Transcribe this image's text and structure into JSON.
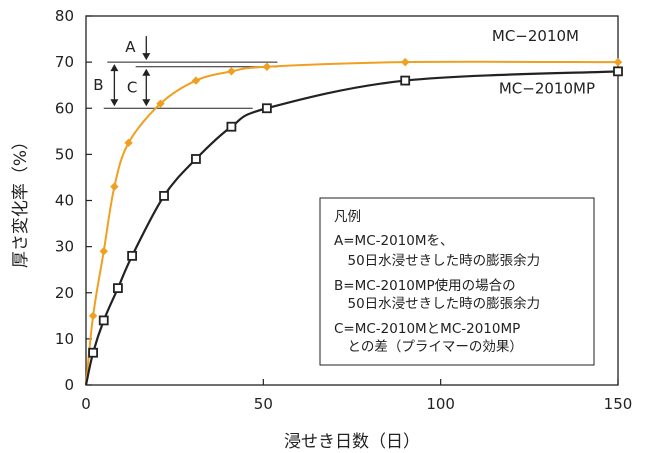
{
  "chart_data": {
    "type": "line",
    "xlabel": "浸せき日数（日）",
    "ylabel": "厚さ変化率（%）",
    "xlim": [
      0,
      150
    ],
    "ylim": [
      0,
      80
    ],
    "xticks": [
      0,
      50,
      100,
      150
    ],
    "yticks": [
      0,
      10,
      20,
      30,
      40,
      50,
      60,
      70,
      80
    ],
    "grid": false,
    "series": [
      {
        "name": "MC−2010M",
        "color": "#f0a020",
        "marker": "diamond",
        "points": [
          [
            0,
            0
          ],
          [
            2,
            15
          ],
          [
            5,
            29
          ],
          [
            8,
            43
          ],
          [
            12,
            52.5
          ],
          [
            21,
            61
          ],
          [
            31,
            66
          ],
          [
            41,
            68
          ],
          [
            51,
            69
          ],
          [
            90,
            70
          ],
          [
            150,
            70
          ]
        ]
      },
      {
        "name": "MC−2010MP",
        "color": "#222222",
        "marker": "square",
        "points": [
          [
            0,
            0
          ],
          [
            2,
            7
          ],
          [
            5,
            14
          ],
          [
            9,
            21
          ],
          [
            13,
            28
          ],
          [
            22,
            41
          ],
          [
            31,
            49
          ],
          [
            41,
            56
          ],
          [
            51,
            60
          ],
          [
            90,
            66
          ],
          [
            150,
            68
          ]
        ]
      }
    ],
    "annotations": {
      "A": "A",
      "B": "B",
      "C": "C"
    },
    "legend": {
      "title": "凡例",
      "placement": "bottom-right",
      "lines": [
        "A=MC-2010Mを、",
        "　50日水浸せきした時の膨張余力",
        "B=MC-2010MP使用の場合の",
        "　50日水浸せきした時の膨張余力",
        "C=MC-2010MとMC-2010MP",
        "　との差（プライマーの効果）"
      ]
    }
  }
}
